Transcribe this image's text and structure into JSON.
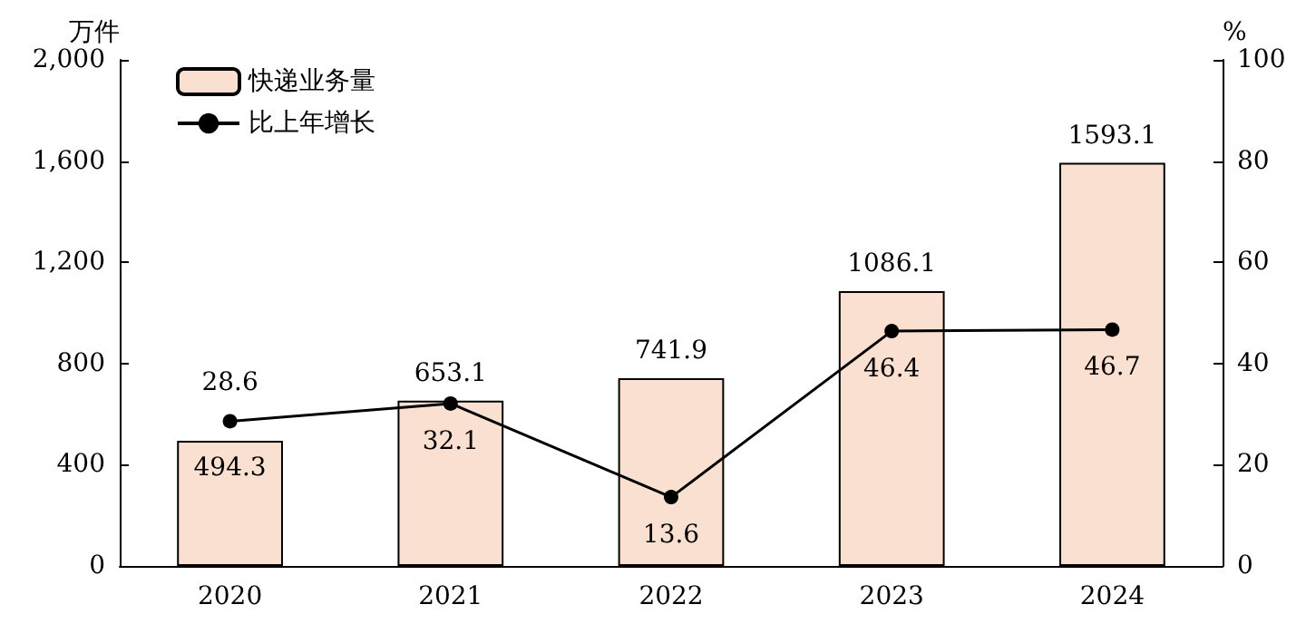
{
  "chart_data": {
    "type": "bar",
    "categories": [
      "2020",
      "2021",
      "2022",
      "2023",
      "2024"
    ],
    "ylabel": "万件",
    "y2label": "%",
    "ylim": [
      0,
      2000
    ],
    "yticks": [
      0,
      400,
      800,
      {
        "value": 1200,
        "label": "1,200"
      },
      {
        "value": 1600,
        "label": "1,600"
      },
      {
        "value": 2000,
        "label": "2,000"
      }
    ],
    "y2lim": [
      0,
      100
    ],
    "y2ticks": [
      0,
      20,
      40,
      60,
      80,
      100
    ],
    "series": [
      {
        "name": "快递业务量",
        "color": "#fae0d0",
        "values": [
          494.3,
          653.1,
          741.9,
          1086.1,
          1593.1
        ]
      },
      {
        "name": "比上年增长",
        "type": "line",
        "axis": "y2",
        "color": "#000000",
        "marker": "circle",
        "values": [
          28.6,
          32.1,
          13.6,
          46.4,
          46.7
        ]
      }
    ],
    "data_labels": true,
    "legend": "top left",
    "grid": false
  }
}
